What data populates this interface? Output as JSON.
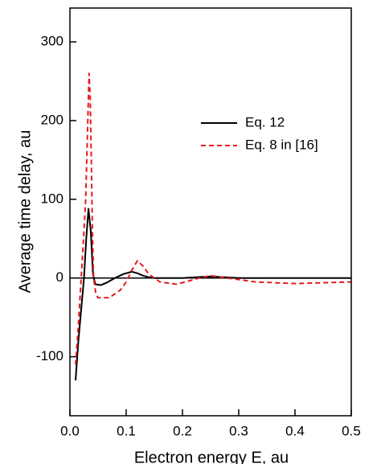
{
  "chart_data": {
    "type": "line",
    "x_label": "Electron energy E, au",
    "y_label": "Average time delay, au",
    "xlim": [
      0,
      0.5
    ],
    "xticks": [
      {
        "value": 0,
        "label": "0.0"
      },
      0.1,
      0.2,
      0.3,
      0.4,
      0.5
    ],
    "ylim": [
      -175,
      343
    ],
    "yticks": [
      -100,
      0,
      100,
      200,
      300
    ],
    "zero_line": true,
    "series": [
      {
        "name": "Eq. 12",
        "color": "#000000",
        "line_style": "solid",
        "x": [
          0.01,
          0.015,
          0.02,
          0.025,
          0.029,
          0.033,
          0.037,
          0.041,
          0.045,
          0.055,
          0.065,
          0.08,
          0.095,
          0.11,
          0.12,
          0.13,
          0.14,
          0.15,
          0.2,
          0.25,
          0.3,
          0.35,
          0.4,
          0.45,
          0.5
        ],
        "values": [
          -130,
          -80,
          -40,
          0,
          50,
          88,
          60,
          5,
          -8,
          -9,
          -6,
          0,
          5,
          8,
          6,
          3,
          1,
          0,
          0,
          2,
          0,
          0,
          0,
          0,
          0
        ]
      },
      {
        "name": "Eq. 8 in [16]",
        "color": "#e8191d",
        "line_style": "dashed",
        "x": [
          0.01,
          0.015,
          0.02,
          0.025,
          0.028,
          0.031,
          0.034,
          0.036,
          0.038,
          0.04,
          0.042,
          0.046,
          0.05,
          0.06,
          0.07,
          0.08,
          0.09,
          0.1,
          0.11,
          0.12,
          0.13,
          0.14,
          0.16,
          0.19,
          0.21,
          0.23,
          0.25,
          0.28,
          0.33,
          0.4,
          0.45,
          0.5
        ],
        "values": [
          -110,
          -60,
          0,
          60,
          100,
          180,
          260,
          230,
          150,
          60,
          0,
          -20,
          -25,
          -25,
          -25,
          -20,
          -15,
          -5,
          10,
          22,
          15,
          5,
          -5,
          -8,
          -4,
          0,
          3,
          0,
          -5,
          -7,
          -6,
          -5
        ]
      }
    ],
    "legend": {
      "position": "upper right"
    }
  }
}
